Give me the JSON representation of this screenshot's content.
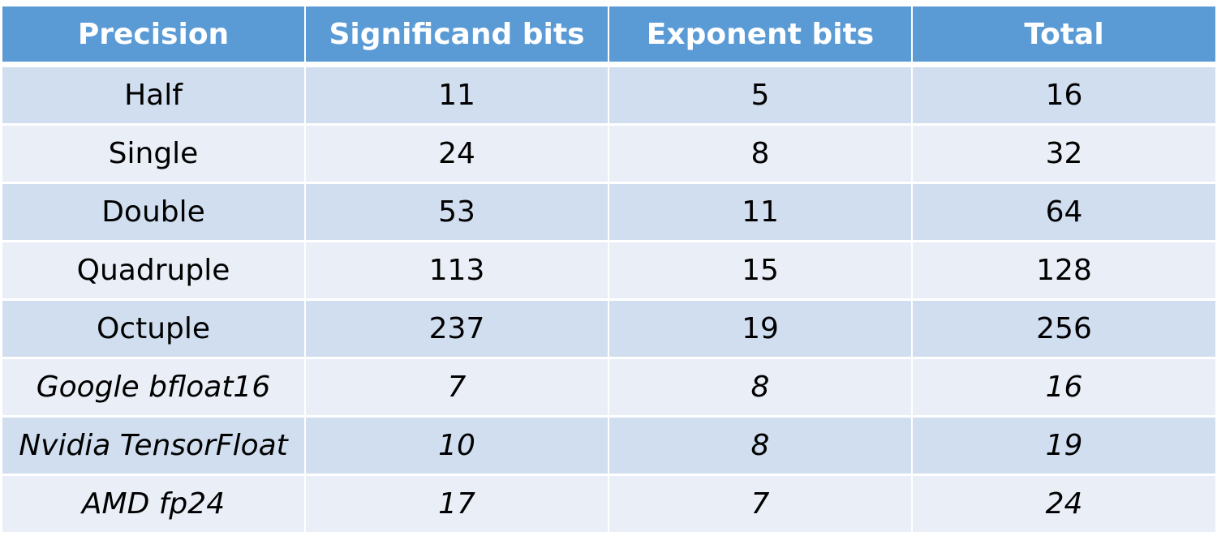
{
  "table": {
    "headers": [
      "Precision",
      "Significand bits",
      "Exponent bits",
      "Total"
    ],
    "rows": [
      {
        "cells": [
          "Half",
          "11",
          "5",
          "16"
        ],
        "italic": false
      },
      {
        "cells": [
          "Single",
          "24",
          "8",
          "32"
        ],
        "italic": false
      },
      {
        "cells": [
          "Double",
          "53",
          "11",
          "64"
        ],
        "italic": false
      },
      {
        "cells": [
          "Quadruple",
          "113",
          "15",
          "128"
        ],
        "italic": false
      },
      {
        "cells": [
          "Octuple",
          "237",
          "19",
          "256"
        ],
        "italic": false
      },
      {
        "cells": [
          "Google bfloat16",
          "7",
          "8",
          "16"
        ],
        "italic": true
      },
      {
        "cells": [
          "Nvidia TensorFloat",
          "10",
          "8",
          "19"
        ],
        "italic": true
      },
      {
        "cells": [
          "AMD fp24",
          "17",
          "7",
          "24"
        ],
        "italic": true
      }
    ]
  },
  "colors": {
    "header_bg": "#5b9bd5",
    "header_text": "#ffffff",
    "row_dark": "#d0deef",
    "row_light": "#e9eef7"
  }
}
